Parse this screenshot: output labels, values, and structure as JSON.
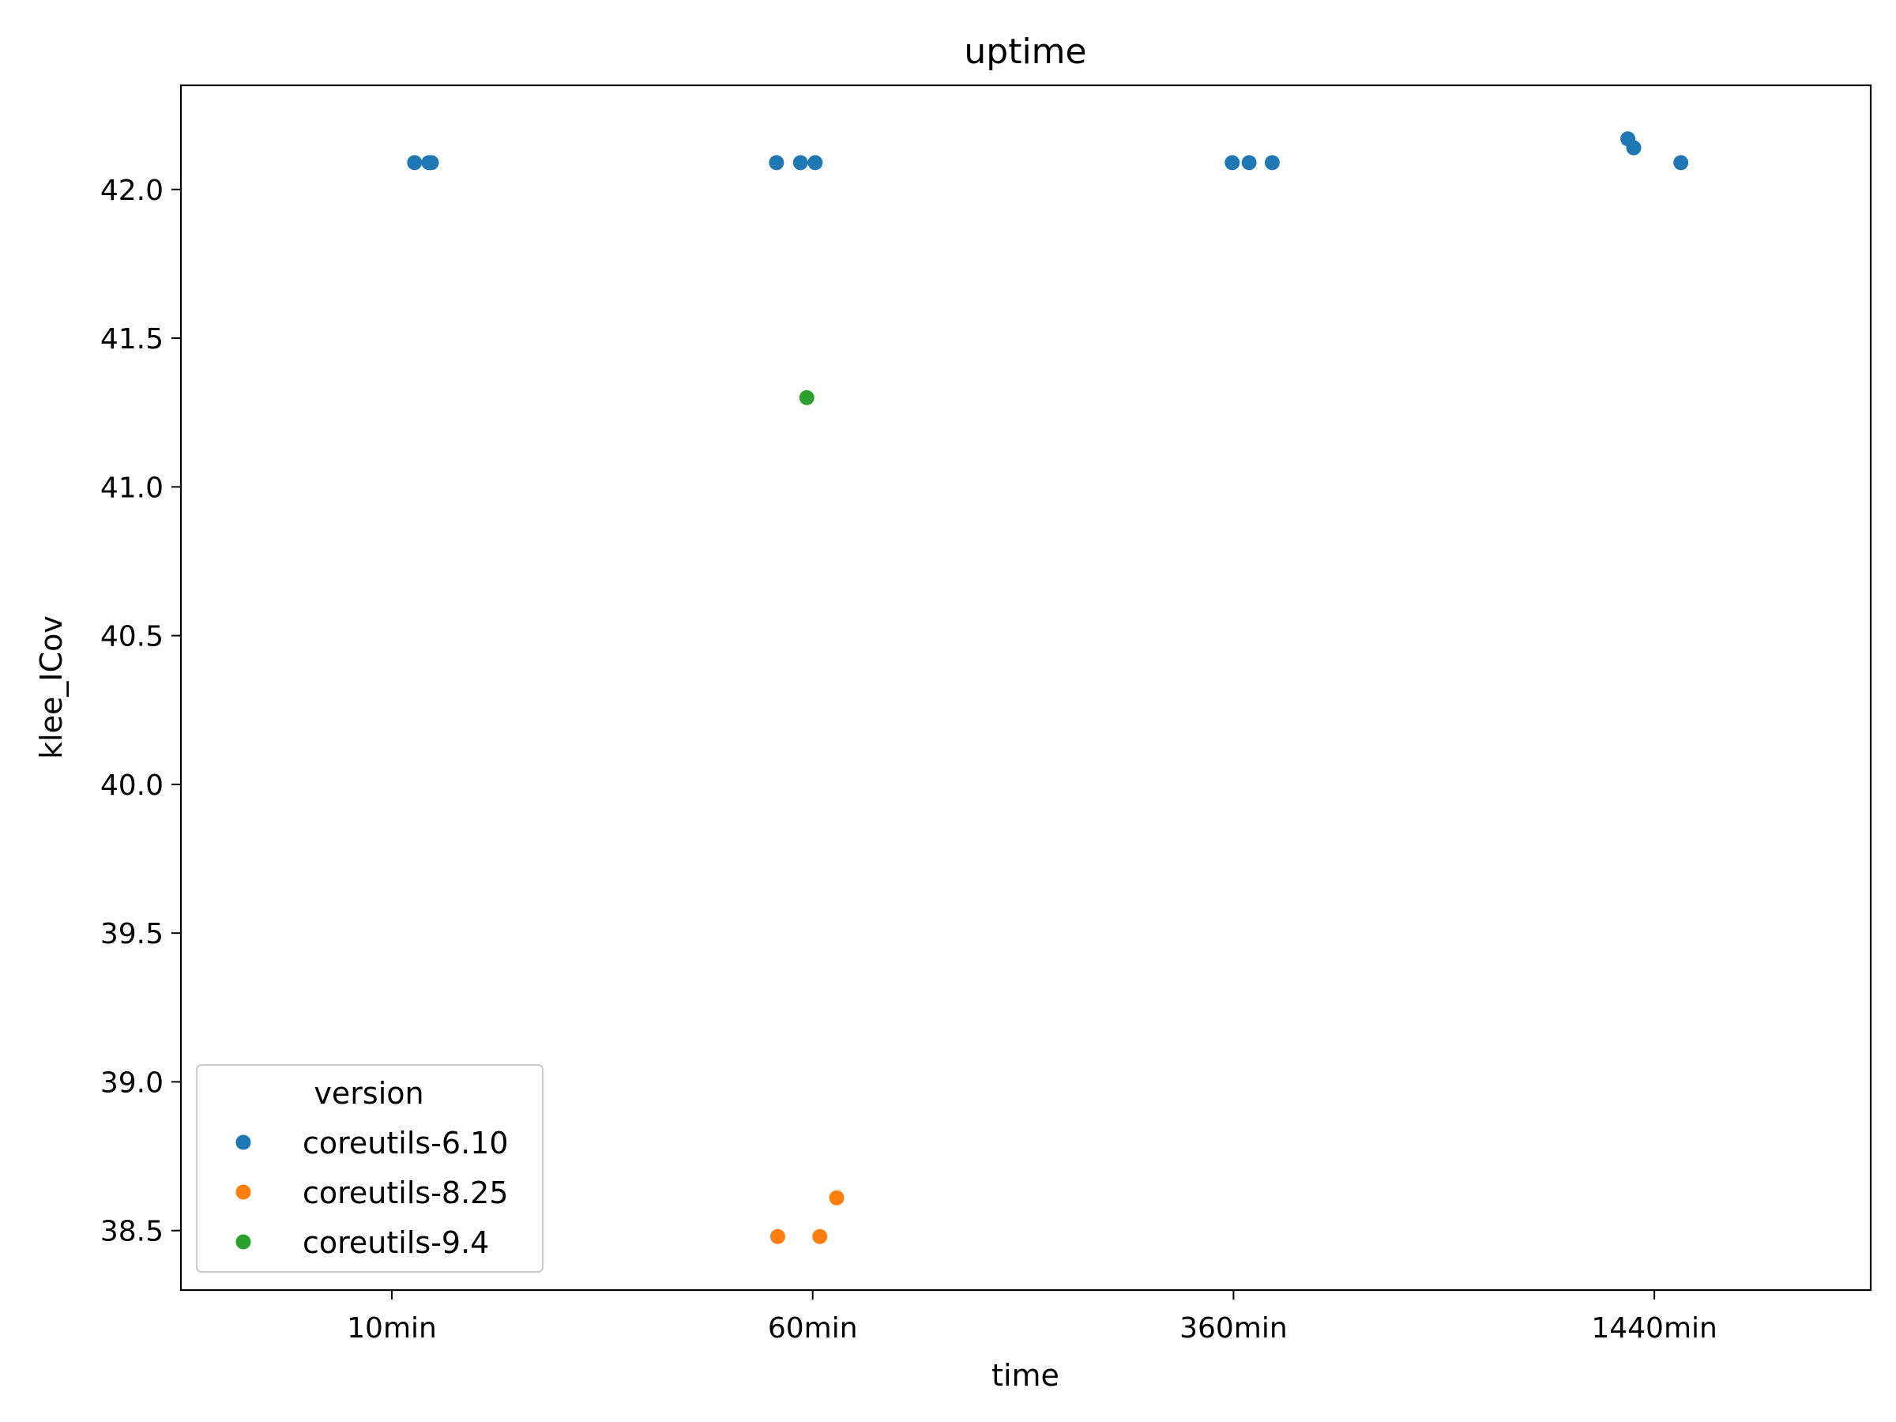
{
  "chart_data": {
    "type": "scatter",
    "title": "uptime",
    "xlabel": "time",
    "ylabel": "klee_ICov",
    "categories": [
      "10min",
      "60min",
      "360min",
      "1440min"
    ],
    "ylim": [
      38.3,
      42.35
    ],
    "yticks": [
      38.5,
      39.0,
      39.5,
      40.0,
      40.5,
      41.0,
      41.5,
      42.0
    ],
    "grid": false,
    "legend": {
      "title": "version",
      "placement": "lower-left"
    },
    "series": [
      {
        "name": "coreutils-6.10",
        "color": "#1f77b4",
        "points": [
          {
            "x": "10min",
            "jitter": 0.054,
            "y": 42.09
          },
          {
            "x": "10min",
            "jitter": 0.088,
            "y": 42.09
          },
          {
            "x": "10min",
            "jitter": 0.094,
            "y": 42.09
          },
          {
            "x": "60min",
            "jitter": -0.086,
            "y": 42.09
          },
          {
            "x": "60min",
            "jitter": -0.029,
            "y": 42.09
          },
          {
            "x": "60min",
            "jitter": 0.006,
            "y": 42.09
          },
          {
            "x": "360min",
            "jitter": -0.003,
            "y": 42.09
          },
          {
            "x": "360min",
            "jitter": 0.037,
            "y": 42.09
          },
          {
            "x": "360min",
            "jitter": 0.092,
            "y": 42.09
          },
          {
            "x": "1440min",
            "jitter": -0.063,
            "y": 42.17
          },
          {
            "x": "1440min",
            "jitter": -0.049,
            "y": 42.14
          },
          {
            "x": "1440min",
            "jitter": 0.063,
            "y": 42.09
          }
        ]
      },
      {
        "name": "coreutils-8.25",
        "color": "#ff7f0e",
        "points": [
          {
            "x": "60min",
            "jitter": -0.083,
            "y": 38.48
          },
          {
            "x": "60min",
            "jitter": 0.017,
            "y": 38.48
          },
          {
            "x": "60min",
            "jitter": 0.057,
            "y": 38.61
          }
        ]
      },
      {
        "name": "coreutils-9.4",
        "color": "#2ca02c",
        "points": [
          {
            "x": "60min",
            "jitter": -0.014,
            "y": 41.3
          }
        ]
      }
    ]
  }
}
